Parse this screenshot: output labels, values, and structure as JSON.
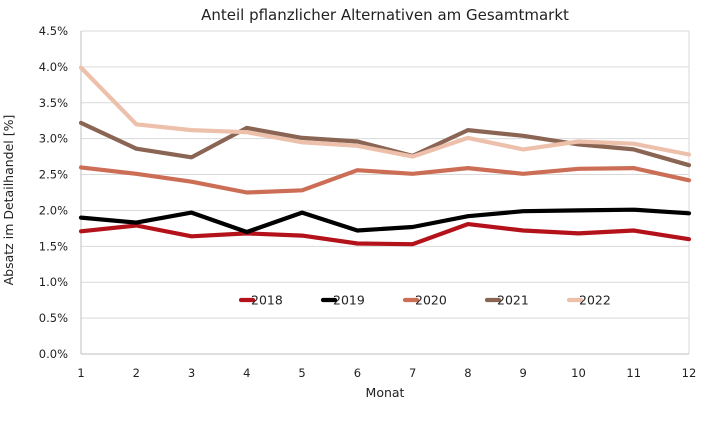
{
  "chart_data": {
    "type": "line",
    "title": "Anteil pflanzlicher Alternativen am Gesamtmarkt",
    "xlabel": "Monat",
    "ylabel": "Absatz im Detailhandel [%]",
    "x": [
      1,
      2,
      3,
      4,
      5,
      6,
      7,
      8,
      9,
      10,
      11,
      12
    ],
    "x_tick_labels": [
      "1",
      "2",
      "3",
      "4",
      "5",
      "6",
      "7",
      "8",
      "9",
      "10",
      "11",
      "12"
    ],
    "xlim": [
      1,
      12
    ],
    "ylim": [
      0,
      4.5
    ],
    "y_ticks": [
      0,
      0.5,
      1.0,
      1.5,
      2.0,
      2.5,
      3.0,
      3.5,
      4.0,
      4.5
    ],
    "y_tick_labels": [
      "0.0%",
      "0.5%",
      "1.0%",
      "1.5%",
      "2.0%",
      "2.5%",
      "3.0%",
      "3.5%",
      "4.0%",
      "4.5%"
    ],
    "grid": "horizontal",
    "legend_position": "inside-bottom-center",
    "series": [
      {
        "name": "2018",
        "color": "#b4121b",
        "values": [
          1.71,
          1.79,
          1.64,
          1.68,
          1.65,
          1.54,
          1.53,
          1.81,
          1.72,
          1.68,
          1.72,
          1.6
        ]
      },
      {
        "name": "2019",
        "color": "#000000",
        "values": [
          1.9,
          1.83,
          1.97,
          1.7,
          1.97,
          1.72,
          1.77,
          1.92,
          1.99,
          2.0,
          2.01,
          1.96
        ]
      },
      {
        "name": "2020",
        "color": "#cc6e56",
        "values": [
          2.6,
          2.51,
          2.4,
          2.25,
          2.28,
          2.56,
          2.51,
          2.59,
          2.51,
          2.58,
          2.59,
          2.42
        ]
      },
      {
        "name": "2021",
        "color": "#8b6554",
        "values": [
          3.22,
          2.86,
          2.74,
          3.15,
          3.01,
          2.96,
          2.76,
          3.12,
          3.04,
          2.92,
          2.85,
          2.63
        ]
      },
      {
        "name": "2022",
        "color": "#edc0ac",
        "values": [
          3.99,
          3.2,
          3.12,
          3.09,
          2.95,
          2.9,
          2.75,
          3.01,
          2.85,
          2.96,
          2.93,
          2.78
        ]
      }
    ]
  }
}
